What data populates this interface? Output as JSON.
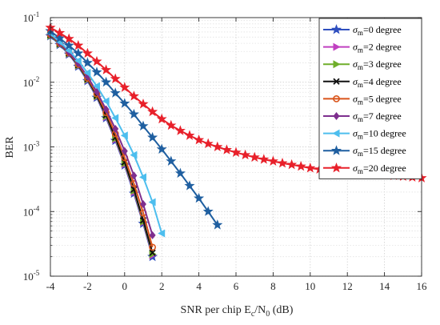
{
  "chart_data": {
    "type": "line",
    "title": "",
    "xlabel": "SNR per chip  E_c/N_0 (dB)",
    "ylabel": "BER",
    "x_scale": "linear",
    "y_scale": "log",
    "xlim": [
      -4,
      16
    ],
    "ylim": [
      1e-05,
      0.1
    ],
    "x_ticks": [
      -4,
      -2,
      0,
      2,
      4,
      6,
      8,
      10,
      12,
      14,
      16
    ],
    "y_ticks": [
      {
        "value": 1e-05,
        "base": "10",
        "exp": "-5"
      },
      {
        "value": 0.0001,
        "base": "10",
        "exp": "-4"
      },
      {
        "value": 0.001,
        "base": "10",
        "exp": "-3"
      },
      {
        "value": 0.01,
        "base": "10",
        "exp": "-2"
      },
      {
        "value": 0.1,
        "base": "10",
        "exp": "-1"
      }
    ],
    "grid": true,
    "legend_position": "top-right",
    "series": [
      {
        "name": "σ_m=0 degree",
        "sym": "σ",
        "sub": "m",
        "rest": "=0 degree",
        "color": "#2f4fbf",
        "marker": "star",
        "x": [
          -4,
          -3.5,
          -3,
          -2.5,
          -2,
          -1.5,
          -1,
          -0.5,
          0,
          0.5,
          1,
          1.5
        ],
        "y": [
          0.052,
          0.038,
          0.027,
          0.0175,
          0.0105,
          0.0058,
          0.0028,
          0.00125,
          0.00052,
          0.00019,
          6.5e-05,
          2e-05
        ]
      },
      {
        "name": "σ_m=2 degree",
        "sym": "σ",
        "sub": "m",
        "rest": "=2 degree",
        "color": "#c040c0",
        "marker": "triangle-right",
        "x": [
          -4,
          -3.5,
          -3,
          -2.5,
          -2,
          -1.5,
          -1,
          -0.5,
          0,
          0.5,
          1,
          1.5
        ],
        "y": [
          0.053,
          0.039,
          0.0275,
          0.018,
          0.0108,
          0.006,
          0.0029,
          0.0013,
          0.00054,
          0.0002,
          6.8e-05,
          2.1e-05
        ]
      },
      {
        "name": "σ_m=3 degree",
        "sym": "σ",
        "sub": "m",
        "rest": "=3 degree",
        "color": "#6fae2a",
        "marker": "triangle-right",
        "x": [
          -4,
          -3.5,
          -3,
          -2.5,
          -2,
          -1.5,
          -1,
          -0.5,
          0,
          0.5,
          1,
          1.5
        ],
        "y": [
          0.053,
          0.039,
          0.0278,
          0.0182,
          0.011,
          0.0061,
          0.003,
          0.00135,
          0.00056,
          0.00021,
          7e-05,
          2.2e-05
        ]
      },
      {
        "name": "σ_m=4 degree",
        "sym": "σ",
        "sub": "m",
        "rest": "=4 degree",
        "color": "#111111",
        "marker": "x",
        "x": [
          -4,
          -3.5,
          -3,
          -2.5,
          -2,
          -1.5,
          -1,
          -0.5,
          0,
          0.5,
          1,
          1.5
        ],
        "y": [
          0.054,
          0.0395,
          0.028,
          0.0184,
          0.0112,
          0.0062,
          0.0031,
          0.0014,
          0.00058,
          0.00022,
          7.3e-05,
          2.3e-05
        ]
      },
      {
        "name": "σ_m=5 degree",
        "sym": "σ",
        "sub": "m",
        "rest": "=5 degree",
        "color": "#d9541a",
        "marker": "circle",
        "x": [
          -4,
          -3.5,
          -3,
          -2.5,
          -2,
          -1.5,
          -1,
          -0.5,
          0,
          0.5,
          1,
          1.5
        ],
        "y": [
          0.055,
          0.04,
          0.0285,
          0.019,
          0.0116,
          0.0066,
          0.0034,
          0.0016,
          0.00068,
          0.00027,
          9.5e-05,
          2.8e-05
        ]
      },
      {
        "name": "σ_m=7 degree",
        "sym": "σ",
        "sub": "m",
        "rest": "=7 degree",
        "color": "#7e2f8e",
        "marker": "diamond",
        "x": [
          -4,
          -3.5,
          -3,
          -2.5,
          -2,
          -1.5,
          -1,
          -0.5,
          0,
          0.5,
          1,
          1.5
        ],
        "y": [
          0.056,
          0.041,
          0.029,
          0.0196,
          0.0122,
          0.0071,
          0.0038,
          0.0019,
          0.00086,
          0.00036,
          0.00013,
          4.3e-05
        ]
      },
      {
        "name": "σ_m=10 degree",
        "sym": "σ",
        "sub": "m",
        "rest": "=10 degree",
        "color": "#4dbeee",
        "marker": "triangle-left",
        "x": [
          -4,
          -3.5,
          -3,
          -2.5,
          -2,
          -1.5,
          -1,
          -0.5,
          0,
          0.5,
          1,
          1.5,
          2
        ],
        "y": [
          0.057,
          0.042,
          0.031,
          0.0215,
          0.014,
          0.0087,
          0.0051,
          0.0028,
          0.0015,
          0.00075,
          0.00034,
          0.00014,
          4.6e-05
        ]
      },
      {
        "name": "σ_m=15 degree",
        "sym": "σ",
        "sub": "m",
        "rest": "=15 degree",
        "color": "#1f5fa0",
        "marker": "star",
        "x": [
          -4,
          -3.5,
          -3,
          -2.5,
          -2,
          -1.5,
          -1,
          -0.5,
          0,
          0.5,
          1,
          1.5,
          2,
          2.5,
          3,
          3.5,
          4,
          4.5,
          5
        ],
        "y": [
          0.062,
          0.048,
          0.037,
          0.028,
          0.02,
          0.0143,
          0.01,
          0.0068,
          0.0047,
          0.0032,
          0.0021,
          0.0014,
          0.00092,
          0.0006,
          0.00039,
          0.00025,
          0.00016,
          0.0001,
          6.2e-05
        ]
      },
      {
        "name": "σ_m=20 degree",
        "sym": "σ",
        "sub": "m",
        "rest": "=20 degree",
        "color": "#e8202a",
        "marker": "star",
        "x": [
          -4,
          -3.5,
          -3,
          -2.5,
          -2,
          -1.5,
          -1,
          -0.5,
          0,
          0.5,
          1,
          1.5,
          2,
          2.5,
          3,
          3.5,
          4,
          4.5,
          5,
          5.5,
          6,
          6.5,
          7,
          7.5,
          8,
          8.5,
          9,
          9.5,
          10,
          10.5,
          11,
          11.5,
          12,
          12.5,
          13,
          13.5,
          14,
          14.5,
          15,
          15.5,
          16
        ],
        "y": [
          0.07,
          0.058,
          0.047,
          0.037,
          0.028,
          0.021,
          0.0155,
          0.0113,
          0.0083,
          0.0061,
          0.0046,
          0.0035,
          0.0027,
          0.00215,
          0.00178,
          0.0015,
          0.00128,
          0.00112,
          0.001,
          0.0009,
          0.00082,
          0.00075,
          0.00069,
          0.00064,
          0.0006,
          0.00056,
          0.00053,
          0.0005,
          0.00047,
          0.00045,
          0.00043,
          0.00042,
          0.00041,
          0.0004,
          0.00039,
          0.00038,
          0.00037,
          0.00036,
          0.00035,
          0.00034,
          0.00033
        ]
      }
    ]
  }
}
